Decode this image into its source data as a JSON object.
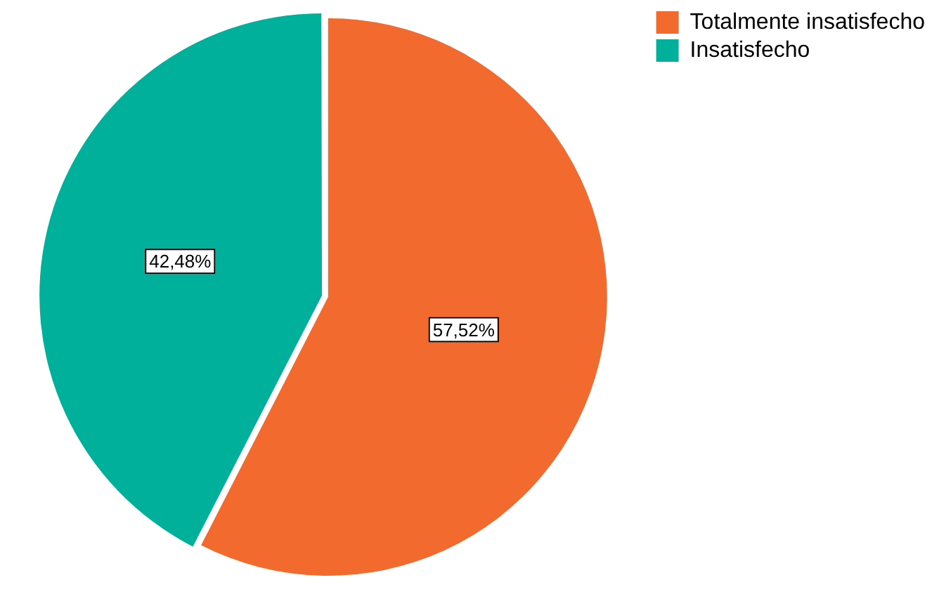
{
  "chart_data": {
    "type": "pie",
    "categories": [
      "Totalmente insatisfecho",
      "Insatisfecho"
    ],
    "values": [
      57.52,
      42.48
    ],
    "colors": [
      "#f26a2e",
      "#00b09b"
    ],
    "value_labels": [
      "57,52%",
      "42,48%"
    ],
    "legend": "top right"
  }
}
